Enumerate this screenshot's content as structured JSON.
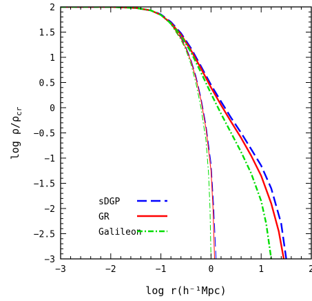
{
  "chart_data": {
    "type": "line",
    "xlabel": "log r(h⁻¹Mpc)",
    "ylabel": "log ρ/ρcr",
    "ylabel_main": "log ρ/ρ",
    "ylabel_sub": "cr",
    "xlim": [
      -3,
      2
    ],
    "ylim": [
      -3,
      2
    ],
    "x_ticks": [
      -3,
      -2,
      -1,
      0,
      1,
      2
    ],
    "x_tick_labels": [
      "−3",
      "−2",
      "−1",
      "0",
      "1",
      "2"
    ],
    "y_ticks": [
      -3,
      -2.5,
      -2,
      -1.5,
      -1,
      -0.5,
      0,
      0.5,
      1,
      1.5,
      2
    ],
    "y_tick_labels": [
      "−3",
      "−2.5",
      "−2",
      "−1.5",
      "−1",
      "−0.5",
      "0",
      "0.5",
      "1",
      "1.5",
      "2"
    ],
    "grid": false,
    "legend_position": "bottom-left",
    "series": [
      {
        "name": "sDGP",
        "color": "#0000ff",
        "style": "dashed",
        "x": [
          -3,
          -2,
          -1.5,
          -1.2,
          -1,
          -0.8,
          -0.6,
          -0.4,
          -0.2,
          0,
          0.2,
          0.4,
          0.6,
          0.8,
          1.0,
          1.2,
          1.4,
          1.5
        ],
        "y": [
          2,
          2,
          1.98,
          1.93,
          1.85,
          1.7,
          1.48,
          1.18,
          0.82,
          0.45,
          0.12,
          -0.2,
          -0.5,
          -0.82,
          -1.15,
          -1.6,
          -2.3,
          -3
        ]
      },
      {
        "name": "GR",
        "color": "#ff0000",
        "style": "solid",
        "x": [
          -3,
          -2,
          -1.5,
          -1.2,
          -1,
          -0.8,
          -0.6,
          -0.4,
          -0.2,
          0,
          0.2,
          0.4,
          0.6,
          0.8,
          1.0,
          1.2,
          1.35,
          1.45
        ],
        "y": [
          2,
          2,
          1.98,
          1.93,
          1.84,
          1.68,
          1.45,
          1.14,
          0.78,
          0.4,
          0.05,
          -0.28,
          -0.6,
          -0.95,
          -1.35,
          -1.9,
          -2.45,
          -3
        ]
      },
      {
        "name": "Galileon",
        "color": "#00dd00",
        "style": "dashdot",
        "x": [
          -3,
          -2,
          -1.5,
          -1.2,
          -1,
          -0.8,
          -0.6,
          -0.4,
          -0.2,
          0,
          0.2,
          0.4,
          0.6,
          0.8,
          1.0,
          1.1,
          1.2
        ],
        "y": [
          2,
          2,
          1.98,
          1.93,
          1.84,
          1.67,
          1.43,
          1.1,
          0.7,
          0.28,
          -0.12,
          -0.5,
          -0.88,
          -1.3,
          -1.85,
          -2.3,
          -3
        ]
      }
    ],
    "inner_curves": [
      {
        "color": "#0000ff",
        "style": "dashed",
        "x": [
          -1,
          -0.8,
          -0.6,
          -0.5,
          -0.4,
          -0.3,
          -0.2,
          -0.1,
          0,
          0.05,
          0.1
        ],
        "y": [
          1.85,
          1.68,
          1.4,
          1.2,
          0.95,
          0.62,
          0.2,
          -0.35,
          -1.1,
          -1.9,
          -3
        ]
      },
      {
        "color": "#ff0000",
        "style": "solid",
        "x": [
          -1,
          -0.8,
          -0.6,
          -0.5,
          -0.4,
          -0.3,
          -0.2,
          -0.1,
          0,
          0.04,
          0.07
        ],
        "y": [
          1.84,
          1.66,
          1.38,
          1.18,
          0.92,
          0.58,
          0.15,
          -0.42,
          -1.25,
          -2.0,
          -3
        ]
      },
      {
        "color": "#00dd00",
        "style": "dashdot",
        "x": [
          -1,
          -0.8,
          -0.6,
          -0.5,
          -0.4,
          -0.3,
          -0.2,
          -0.1,
          -0.05,
          -0.02,
          0.0
        ],
        "y": [
          1.84,
          1.65,
          1.35,
          1.14,
          0.86,
          0.48,
          0.0,
          -0.65,
          -1.3,
          -2.0,
          -3
        ]
      }
    ]
  }
}
